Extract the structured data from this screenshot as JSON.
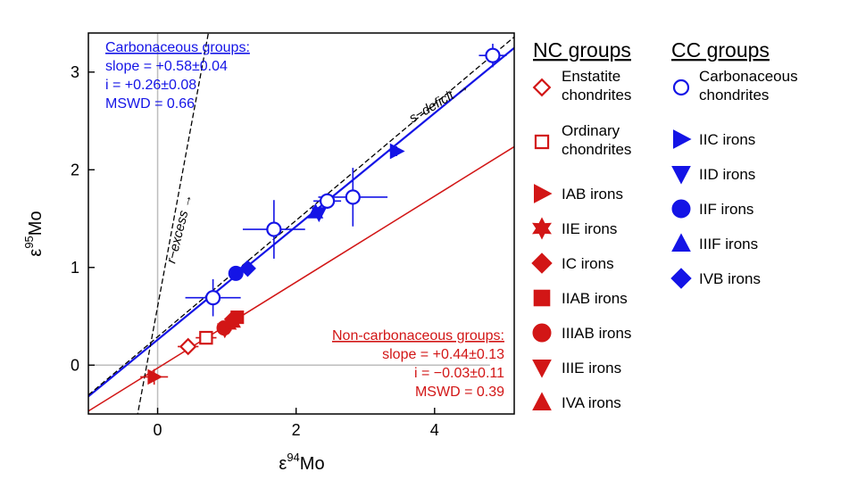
{
  "colors": {
    "nc": "#d21616",
    "cc": "#1414e6",
    "axis": "#000000",
    "ref": "#bdbdbd"
  },
  "chart_data": {
    "type": "scatter",
    "xlabel": {
      "symbol": "ε",
      "sup": "94",
      "name": "Mo"
    },
    "ylabel": {
      "symbol": "ε",
      "sup": "95",
      "name": "Mo"
    },
    "xlim": [
      -1,
      5.15
    ],
    "ylim": [
      -0.5,
      3.4
    ],
    "xticks": [
      0,
      2,
      4
    ],
    "yticks": [
      0,
      1,
      2,
      3
    ],
    "cc_fit": {
      "title": "Carbonaceous groups:",
      "lines": [
        "slope = +0.58±0.04",
        "i = +0.26±0.08",
        "MSWD = 0.66"
      ],
      "slope": 0.58,
      "intercept": 0.26
    },
    "nc_fit": {
      "title": "Non-carbonaceous groups:",
      "lines": [
        "slope = +0.44±0.13",
        "i = −0.03±0.11",
        "MSWD = 0.39"
      ],
      "slope": 0.44,
      "intercept": -0.03
    },
    "s_deficit": {
      "label": "s−deficit →",
      "slope": 0.596,
      "intercept": 0.29
    },
    "r_excess": {
      "label": "r−excess →",
      "slope": 3.82,
      "intercept": 0.6
    },
    "legend_nc": {
      "title": "NC groups",
      "items": [
        {
          "marker": "diamond-open",
          "label": [
            "Enstatite",
            "chondrites"
          ]
        },
        {
          "marker": "square-open",
          "label": [
            "Ordinary",
            "chondrites"
          ]
        },
        {
          "marker": "tri-right",
          "label": [
            "IAB irons"
          ]
        },
        {
          "marker": "star",
          "label": [
            "IIE irons"
          ]
        },
        {
          "marker": "diamond",
          "label": [
            "IC irons"
          ]
        },
        {
          "marker": "square",
          "label": [
            "IIAB irons"
          ]
        },
        {
          "marker": "circle",
          "label": [
            "IIIAB irons"
          ]
        },
        {
          "marker": "tri-down",
          "label": [
            "IIIE irons"
          ]
        },
        {
          "marker": "tri-up",
          "label": [
            "IVA irons"
          ]
        }
      ]
    },
    "legend_cc": {
      "title": "CC groups",
      "items": [
        {
          "marker": "circle-open",
          "label": [
            "Carbonaceous",
            "chondrites"
          ]
        },
        {
          "marker": "tri-right",
          "label": [
            "IIC irons"
          ]
        },
        {
          "marker": "tri-down",
          "label": [
            "IID irons"
          ]
        },
        {
          "marker": "circle",
          "label": [
            "IIF irons"
          ]
        },
        {
          "marker": "tri-up",
          "label": [
            "IIIF irons"
          ]
        },
        {
          "marker": "diamond",
          "label": [
            "IVB irons"
          ]
        }
      ]
    },
    "points": [
      {
        "group": "CC",
        "name": "Carbonaceous chondrites",
        "marker": "circle-open",
        "x": 4.84,
        "y": 3.17,
        "ex": 0.2,
        "ey": 0.12
      },
      {
        "group": "CC",
        "name": "Carbonaceous chondrites",
        "marker": "circle-open",
        "x": 2.82,
        "y": 1.72,
        "ex": 0.5,
        "ey": 0.3
      },
      {
        "group": "CC",
        "name": "Carbonaceous chondrites",
        "marker": "circle-open",
        "x": 2.45,
        "y": 1.68,
        "ex": 0.2,
        "ey": 0.08
      },
      {
        "group": "CC",
        "name": "Carbonaceous chondrites",
        "marker": "circle-open",
        "x": 1.68,
        "y": 1.39,
        "ex": 0.45,
        "ey": 0.3
      },
      {
        "group": "CC",
        "name": "Carbonaceous chondrites",
        "marker": "circle-open",
        "x": 0.8,
        "y": 0.69,
        "ex": 0.4,
        "ey": 0.19
      },
      {
        "group": "CC",
        "name": "IIC irons",
        "marker": "tri-right",
        "x": 3.45,
        "y": 2.19,
        "ex": 0.1,
        "ey": 0.05
      },
      {
        "group": "CC",
        "name": "IID irons",
        "marker": "tri-down",
        "x": 2.33,
        "y": 1.55,
        "ex": 0.05,
        "ey": 0.03
      },
      {
        "group": "CC",
        "name": "IIIF irons",
        "marker": "tri-up",
        "x": 2.28,
        "y": 1.57,
        "ex": 0,
        "ey": 0
      },
      {
        "group": "CC",
        "name": "IIF irons",
        "marker": "circle",
        "x": 1.13,
        "y": 0.94,
        "ex": 0.08,
        "ey": 0.06
      },
      {
        "group": "CC",
        "name": "IVB irons",
        "marker": "diamond",
        "x": 1.3,
        "y": 0.99,
        "ex": 0.08,
        "ey": 0.06
      },
      {
        "group": "NC",
        "name": "IAB irons",
        "marker": "tri-right",
        "x": -0.05,
        "y": -0.12,
        "ex": 0.2,
        "ey": 0.08
      },
      {
        "group": "NC",
        "name": "Enstatite chondrites",
        "marker": "diamond-open",
        "x": 0.44,
        "y": 0.19,
        "ex": 0.15,
        "ey": 0.05
      },
      {
        "group": "NC",
        "name": "Ordinary chondrites",
        "marker": "square-open",
        "x": 0.7,
        "y": 0.28,
        "ex": 0.15,
        "ey": 0.06
      },
      {
        "group": "NC",
        "name": "IIE irons",
        "marker": "star",
        "x": 1.03,
        "y": 0.41,
        "ex": 0.05,
        "ey": 0.04
      },
      {
        "group": "NC",
        "name": "IIIAB irons",
        "marker": "circle",
        "x": 0.96,
        "y": 0.38,
        "ex": 0,
        "ey": 0
      },
      {
        "group": "NC",
        "name": "IIIE irons",
        "marker": "tri-down",
        "x": 0.97,
        "y": 0.36,
        "ex": 0.1,
        "ey": 0.06
      },
      {
        "group": "NC",
        "name": "IVA irons",
        "marker": "tri-up",
        "x": 1.09,
        "y": 0.45,
        "ex": 0,
        "ey": 0
      },
      {
        "group": "NC",
        "name": "IC irons",
        "marker": "diamond",
        "x": 1.08,
        "y": 0.47,
        "ex": 0,
        "ey": 0
      },
      {
        "group": "NC",
        "name": "IIAB irons",
        "marker": "square",
        "x": 1.15,
        "y": 0.49,
        "ex": 0.05,
        "ey": 0.04
      }
    ]
  }
}
